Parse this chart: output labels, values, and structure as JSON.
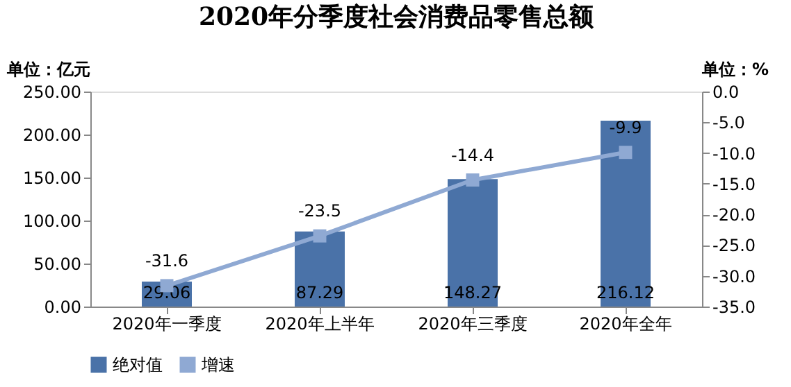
{
  "chart_data": {
    "type": "bar",
    "title": "2020年分季度社会消费品零售总额",
    "ylabel": "单位：亿元",
    "y2label": "单位：%",
    "categories": [
      "2020年一季度",
      "2020年上半年",
      "2020年三季度",
      "2020年全年"
    ],
    "series": [
      {
        "name": "绝对值",
        "color": "#4a72a8",
        "values": [
          29.06,
          87.29,
          148.27,
          216.12
        ]
      },
      {
        "name": "增速",
        "type": "line",
        "axis": "y2",
        "color": "#8fa9d3",
        "values": [
          -31.6,
          -23.5,
          -14.4,
          -9.9
        ]
      }
    ],
    "ylim": [
      0,
      250
    ],
    "yticks": [
      {
        "value": 0,
        "label": "0.00"
      },
      {
        "value": 50,
        "label": "50.00"
      },
      {
        "value": 100,
        "label": "100.00"
      },
      {
        "value": 150,
        "label": "150.00"
      },
      {
        "value": 200,
        "label": "200.00"
      },
      {
        "value": 250,
        "label": "250.00"
      }
    ],
    "y2lim": [
      -35,
      0
    ],
    "y2ticks": [
      {
        "value": -35,
        "label": "-35.0"
      },
      {
        "value": -30,
        "label": "-30.0"
      },
      {
        "value": -25,
        "label": "-25.0"
      },
      {
        "value": -20,
        "label": "-20.0"
      },
      {
        "value": -15,
        "label": "-15.0"
      },
      {
        "value": -10,
        "label": "-10.0"
      },
      {
        "value": -5,
        "label": "-5.0"
      },
      {
        "value": 0,
        "label": "0.0"
      }
    ],
    "data_labels": true,
    "marker": "square",
    "line_style": "solid",
    "grid": false,
    "legend": "bottom"
  }
}
